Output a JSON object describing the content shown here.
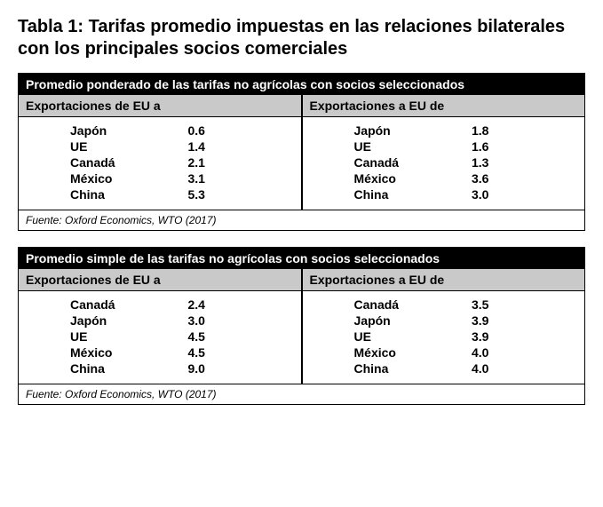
{
  "title": "Tabla 1: Tarifas promedio impuestas en las relaciones bilaterales con los principales socios comerciales",
  "colors": {
    "header_bg": "#000000",
    "header_text": "#ffffff",
    "subheader_bg": "#c9c9c9",
    "text": "#000000",
    "border": "#000000",
    "background": "#ffffff"
  },
  "tables": [
    {
      "header": "Promedio ponderado de las tarifas no agrícolas con socios seleccionados",
      "left_subheader": "Exportaciones de EU a",
      "right_subheader": "Exportaciones a EU de",
      "left_rows": [
        {
          "country": "Japón",
          "value": "0.6"
        },
        {
          "country": "UE",
          "value": "1.4"
        },
        {
          "country": "Canadá",
          "value": "2.1"
        },
        {
          "country": "México",
          "value": "3.1"
        },
        {
          "country": "China",
          "value": "5.3"
        }
      ],
      "right_rows": [
        {
          "country": "Japón",
          "value": "1.8"
        },
        {
          "country": "UE",
          "value": "1.6"
        },
        {
          "country": "Canadá",
          "value": "1.3"
        },
        {
          "country": "México",
          "value": "3.6"
        },
        {
          "country": "China",
          "value": "3.0"
        }
      ],
      "source": "Fuente: Oxford Economics, WTO (2017)"
    },
    {
      "header": "Promedio simple de las tarifas no agrícolas con socios seleccionados",
      "left_subheader": "Exportaciones de EU a",
      "right_subheader": "Exportaciones a EU de",
      "left_rows": [
        {
          "country": "Canadá",
          "value": "2.4"
        },
        {
          "country": "Japón",
          "value": "3.0"
        },
        {
          "country": "UE",
          "value": "4.5"
        },
        {
          "country": "México",
          "value": "4.5"
        },
        {
          "country": "China",
          "value": "9.0"
        }
      ],
      "right_rows": [
        {
          "country": "Canadá",
          "value": "3.5"
        },
        {
          "country": "Japón",
          "value": "3.9"
        },
        {
          "country": "UE",
          "value": "3.9"
        },
        {
          "country": "México",
          "value": "4.0"
        },
        {
          "country": "China",
          "value": "4.0"
        }
      ],
      "source": "Fuente: Oxford Economics, WTO (2017)"
    }
  ]
}
